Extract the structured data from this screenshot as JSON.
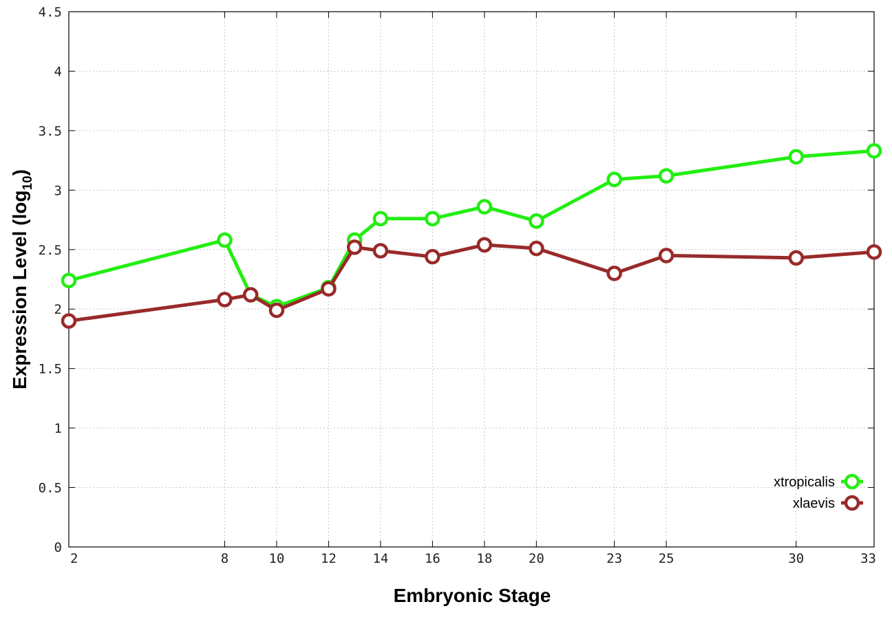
{
  "chart_data": {
    "type": "line",
    "xlabel": "Embryonic Stage",
    "ylabel": "Expression Level (log",
    "ylabel_sub": "10",
    "ylabel_close": ")",
    "ylim": [
      0,
      4.5
    ],
    "xlim": [
      2,
      33
    ],
    "x_ticks": [
      2,
      8,
      10,
      12,
      14,
      16,
      18,
      20,
      23,
      25,
      30,
      33
    ],
    "y_ticks": [
      0,
      0.5,
      1,
      1.5,
      2,
      2.5,
      3,
      3.5,
      4,
      4.5
    ],
    "grid": true,
    "legend_position": "bottom-right",
    "series": [
      {
        "name": "xtropicalis",
        "color": "#22ee11",
        "x": [
          2,
          8,
          9,
          10,
          12,
          13,
          14,
          16,
          18,
          20,
          23,
          25,
          30,
          33
        ],
        "y": [
          2.24,
          2.58,
          2.12,
          2.02,
          2.18,
          2.58,
          2.76,
          2.76,
          2.86,
          2.74,
          3.09,
          3.12,
          3.28,
          3.33
        ]
      },
      {
        "name": "xlaevis",
        "color": "#992a2a",
        "x": [
          2,
          8,
          9,
          10,
          12,
          13,
          14,
          16,
          18,
          20,
          23,
          25,
          30,
          33
        ],
        "y": [
          1.9,
          2.08,
          2.12,
          1.99,
          2.17,
          2.52,
          2.49,
          2.44,
          2.54,
          2.51,
          2.3,
          2.45,
          2.43,
          2.48
        ]
      }
    ]
  }
}
